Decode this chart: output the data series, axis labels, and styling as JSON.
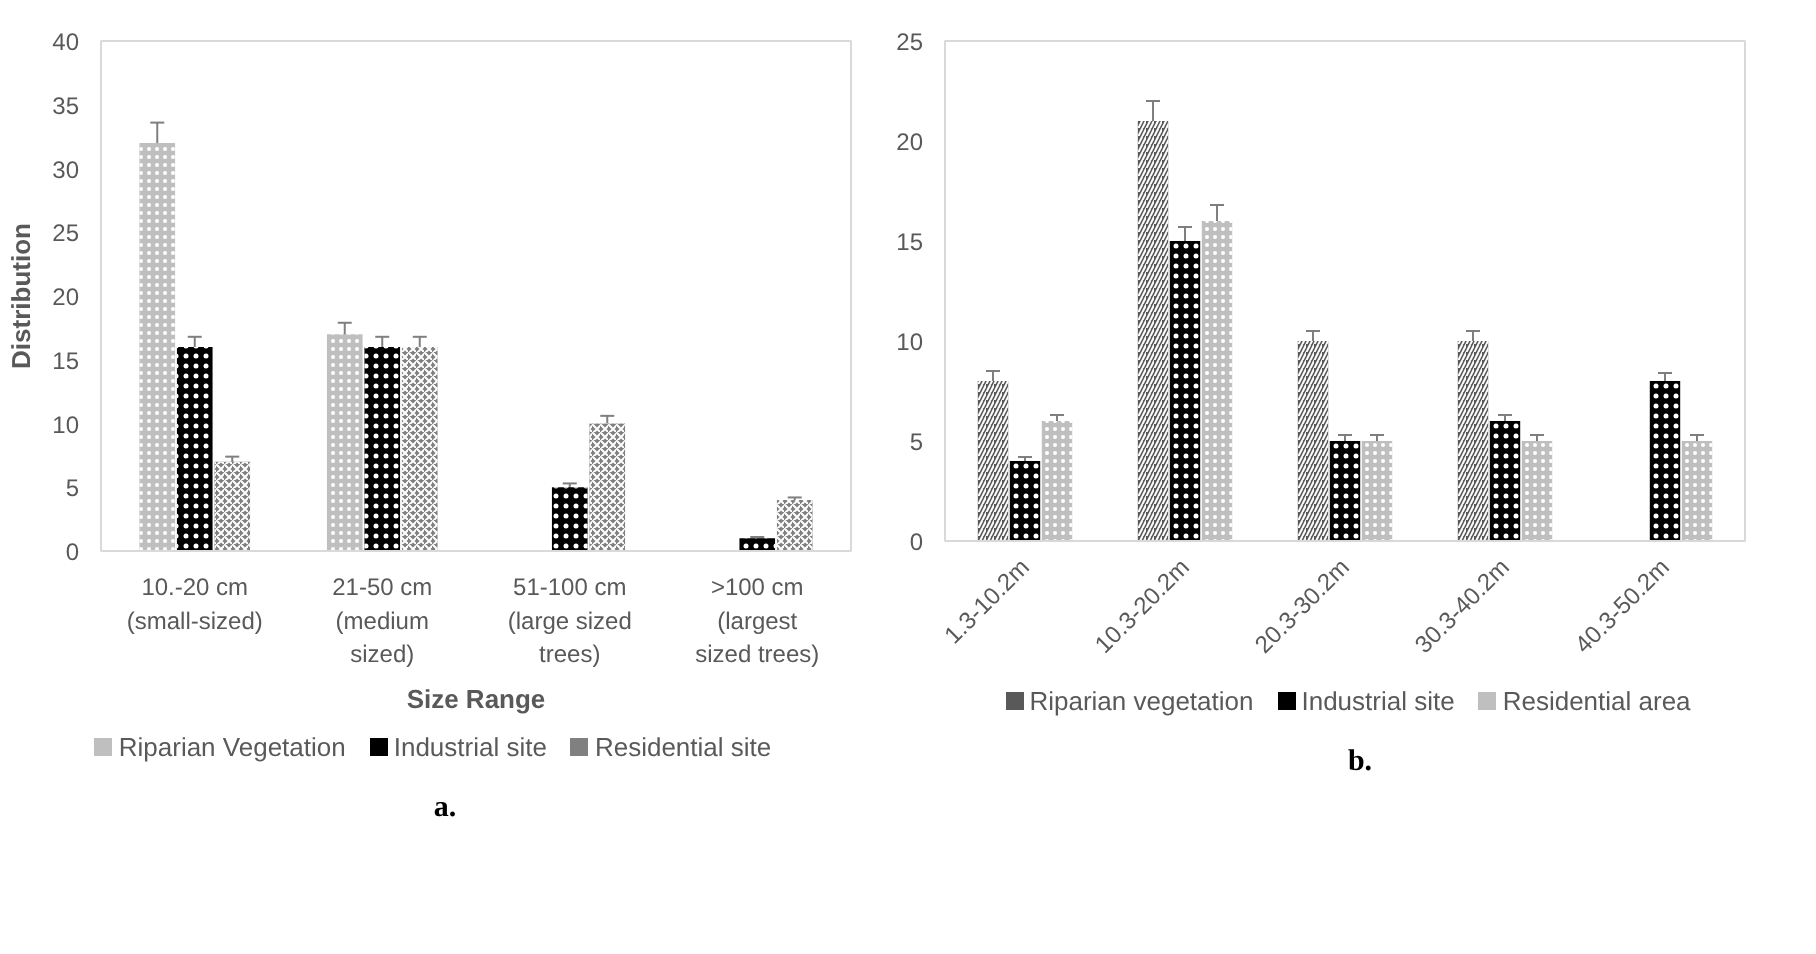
{
  "chart_data": [
    {
      "type": "bar",
      "xlabel": "Size Range",
      "ylabel": "Distribution",
      "categories": [
        "10.-20 cm (small-sized)",
        "21-50 cm (medium sized)",
        "51-100 cm (large sized trees)",
        ">100 cm (largest sized trees)"
      ],
      "series": [
        {
          "name": "Riparian Vegetation",
          "color": "#bfbfbf",
          "values": [
            32,
            17,
            null,
            null
          ],
          "errors": [
            1.6,
            0.9,
            null,
            null
          ]
        },
        {
          "name": "Industrial site",
          "color": "#000000",
          "values": [
            16,
            16,
            5,
            1
          ],
          "errors": [
            0.8,
            0.8,
            0.3,
            0.1
          ]
        },
        {
          "name": "Residential site",
          "color": "#808080",
          "values": [
            7,
            16,
            10,
            4
          ],
          "errors": [
            0.4,
            0.8,
            0.6,
            0.2
          ]
        }
      ],
      "ylim": [
        0,
        40
      ],
      "yticks": [
        0,
        5,
        10,
        15,
        20,
        25,
        30,
        35,
        40
      ],
      "grid": false,
      "legend": "bottom",
      "annotations": [
        "a."
      ]
    },
    {
      "type": "bar",
      "categories": [
        "1.3-10.2m",
        "10.3-20.2m",
        "20.3-30.2m",
        "30.3-40.2m",
        "40.3-50.2m"
      ],
      "series": [
        {
          "name": "Riparian vegetation",
          "color": "#595959",
          "values": [
            8,
            21,
            10,
            10,
            null
          ],
          "errors": [
            0.5,
            1.0,
            0.5,
            0.5,
            null
          ]
        },
        {
          "name": "Industrial site",
          "color": "#000000",
          "values": [
            4,
            15,
            5,
            6,
            8
          ],
          "errors": [
            0.2,
            0.7,
            0.3,
            0.3,
            0.4
          ]
        },
        {
          "name": "Residential area",
          "color": "#bfbfbf",
          "values": [
            6,
            16,
            5,
            5,
            5
          ],
          "errors": [
            0.3,
            0.8,
            0.3,
            0.3,
            0.3
          ]
        }
      ],
      "ylim": [
        0,
        25
      ],
      "yticks": [
        0,
        5,
        10,
        15,
        20,
        25
      ],
      "grid": false,
      "legend": "bottom",
      "annotations": [
        "b."
      ]
    }
  ]
}
